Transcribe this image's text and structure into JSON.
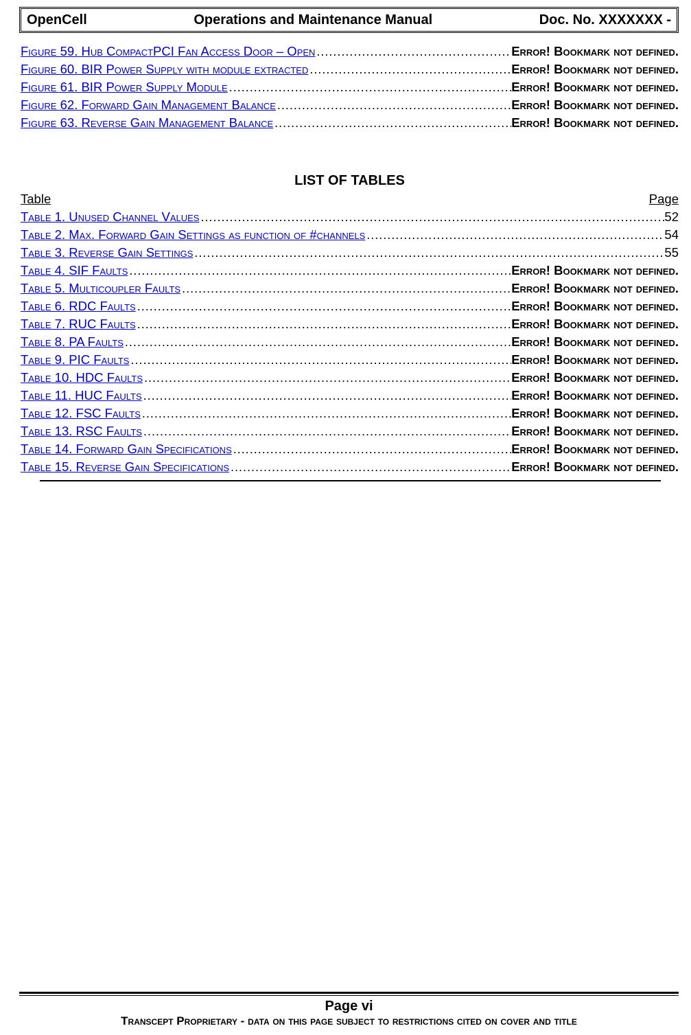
{
  "header": {
    "left": "OpenCell",
    "center": "Operations and Maintenance Manual",
    "right": "Doc. No.  XXXXXXX -"
  },
  "error_text": "Error! Bookmark not defined.",
  "figures": [
    {
      "label": "Figure 59.  Hub CompactPCI Fan Access Door – Open",
      "page": null
    },
    {
      "label": "Figure 60.  BIR Power Supply with module extracted",
      "page": null
    },
    {
      "label": "Figure 61.  BIR Power Supply Module",
      "page": null
    },
    {
      "label": "Figure 62.   Forward Gain Management Balance",
      "page": null
    },
    {
      "label": "Figure 63.   Reverse Gain Management Balance",
      "page": null
    }
  ],
  "tables_section_title": "LIST OF TABLES",
  "tables_header_left": "Table",
  "tables_header_right": "Page",
  "tables": [
    {
      "label": "Table 1.  Unused Channel Values",
      "page": "52"
    },
    {
      "label": "Table 2.  Max. Forward Gain Settings as function of #channels",
      "page": "54"
    },
    {
      "label": "Table 3.   Reverse Gain Settings",
      "page": "55"
    },
    {
      "label": "Table 4.  SIF Faults",
      "page": null
    },
    {
      "label": "Table 5.  Multicoupler Faults",
      "page": null
    },
    {
      "label": "Table 6.  RDC Faults",
      "page": null
    },
    {
      "label": "Table 7.  RUC Faults",
      "page": null
    },
    {
      "label": "Table 8.  PA Faults",
      "page": null
    },
    {
      "label": "Table 9.  PIC Faults",
      "page": null
    },
    {
      "label": "Table 10.  HDC Faults",
      "page": null
    },
    {
      "label": "Table 11.  HUC Faults",
      "page": null
    },
    {
      "label": "Table 12.  FSC Faults",
      "page": null
    },
    {
      "label": "Table 13.  RSC Faults",
      "page": null
    },
    {
      "label": "Table 14.   Forward Gain Specifications",
      "page": null
    },
    {
      "label": "Table 15.   Reverse Gain Specifications",
      "page": null
    }
  ],
  "footer": {
    "page": "Page vi",
    "notice": "Transcept Proprietary -  data on this page subject to restrictions cited on cover and title"
  }
}
